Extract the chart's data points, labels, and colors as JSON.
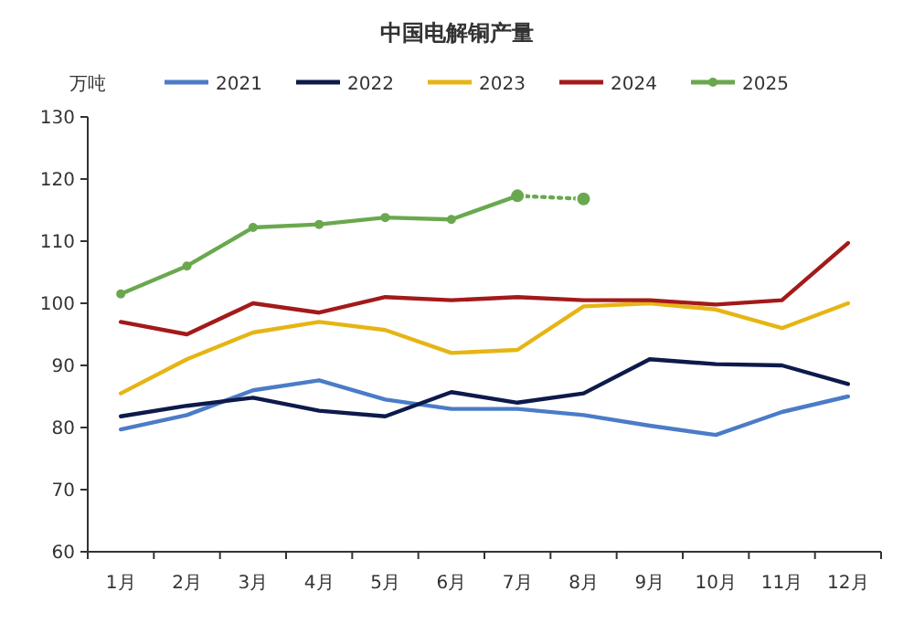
{
  "chart_data": {
    "type": "line",
    "title": "中国电解铜产量",
    "ylabel": "万吨",
    "categories": [
      "1月",
      "2月",
      "3月",
      "4月",
      "5月",
      "6月",
      "7月",
      "8月",
      "9月",
      "10月",
      "11月",
      "12月"
    ],
    "ylim": [
      60,
      130
    ],
    "yticks": [
      60,
      70,
      80,
      90,
      100,
      110,
      120,
      130
    ],
    "legend": "top",
    "grid": false,
    "series": [
      {
        "name": "2021",
        "color": "#4a7cc7",
        "values": [
          79.7,
          82,
          86,
          87.6,
          84.5,
          83,
          83,
          82,
          80.3,
          78.8,
          82.5,
          85
        ]
      },
      {
        "name": "2022",
        "color": "#0d1a4a",
        "values": [
          81.8,
          83.5,
          84.8,
          82.7,
          81.8,
          85.7,
          84,
          85.5,
          91,
          90.2,
          90,
          87
        ]
      },
      {
        "name": "2023",
        "color": "#e6b514",
        "values": [
          85.5,
          91,
          95.3,
          97,
          95.7,
          92,
          92.5,
          99.5,
          100,
          99,
          96,
          100
        ]
      },
      {
        "name": "2024",
        "color": "#a31a1a",
        "values": [
          97,
          95,
          100,
          98.5,
          101,
          100.5,
          101,
          100.5,
          100.5,
          99.8,
          100.5,
          109.7
        ]
      },
      {
        "name": "2025",
        "color": "#6aa84f",
        "marker": "circle",
        "values": [
          101.5,
          106,
          112.2,
          112.7,
          113.8,
          113.5,
          117.3,
          null,
          null,
          null,
          null,
          null
        ]
      },
      {
        "color": "#6aa84f",
        "line_style": "dotted",
        "marker": "circle",
        "values": [
          null,
          null,
          null,
          null,
          null,
          null,
          117.3,
          116.8,
          null,
          null,
          null,
          null
        ]
      }
    ]
  }
}
